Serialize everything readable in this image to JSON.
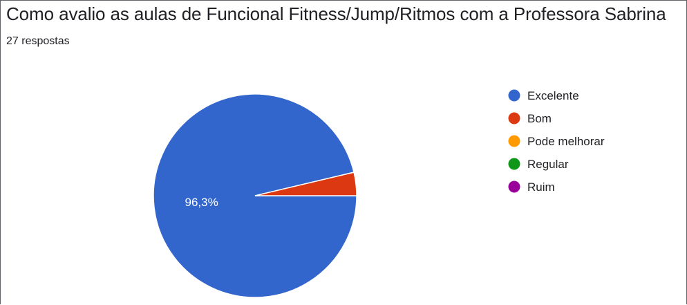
{
  "header": {
    "title": "Como avalio as aulas de Funcional Fitness/Jump/Ritmos com a Professora Sabrina",
    "responses": "27 respostas"
  },
  "chart_data": {
    "type": "pie",
    "title": "Como avalio as aulas de Funcional Fitness/Jump/Ritmos com a Professora Sabrina",
    "total_responses": 27,
    "categories": [
      "Excelente",
      "Bom",
      "Pode melhorar",
      "Regular",
      "Ruim"
    ],
    "values": [
      26,
      1,
      0,
      0,
      0
    ],
    "data_labels": [
      "96,3%",
      "",
      "",
      "",
      ""
    ],
    "colors": [
      "#3366cc",
      "#dc3912",
      "#ff9900",
      "#109618",
      "#990099"
    ],
    "legend_position": "right"
  }
}
